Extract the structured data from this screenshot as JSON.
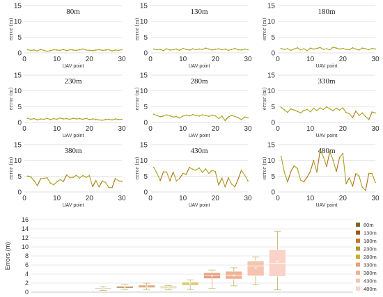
{
  "chart_data": [
    {
      "type": "line",
      "title": "80m",
      "xlabel": "UAV point",
      "ylabel": "error (m)",
      "xlim": [
        0,
        30
      ],
      "ylim": [
        0,
        15
      ],
      "xticks": [
        0,
        10,
        20,
        30
      ],
      "yticks": [
        0,
        5,
        10,
        15
      ],
      "series": [
        {
          "x": [
            1,
            2,
            3,
            4,
            5,
            6,
            7,
            8,
            9,
            10,
            11,
            12,
            13,
            14,
            15,
            16,
            17,
            18,
            19,
            20,
            21,
            22,
            23,
            24,
            25,
            26,
            27,
            28,
            29,
            30
          ],
          "values": [
            1.0,
            0.8,
            0.9,
            0.6,
            1.1,
            0.8,
            0.5,
            0.7,
            1.0,
            0.9,
            0.8,
            1.1,
            0.7,
            1.0,
            0.9,
            0.8,
            1.0,
            1.2,
            0.9,
            0.8,
            0.7,
            0.9,
            1.0,
            0.8,
            0.9,
            1.0,
            0.6,
            0.9,
            0.8,
            1.0
          ]
        }
      ]
    },
    {
      "type": "line",
      "title": "130m",
      "xlabel": "UAV point",
      "ylabel": "error (m)",
      "xlim": [
        0,
        30
      ],
      "ylim": [
        0,
        15
      ],
      "xticks": [
        0,
        10,
        20,
        30
      ],
      "yticks": [
        0,
        5,
        10,
        15
      ],
      "series": [
        {
          "x": [
            1,
            2,
            3,
            4,
            5,
            6,
            7,
            8,
            9,
            10,
            11,
            12,
            13,
            14,
            15,
            16,
            17,
            18,
            19,
            20,
            21,
            22,
            23,
            24,
            25,
            26,
            27,
            28,
            29,
            30
          ],
          "values": [
            1.2,
            1.0,
            1.1,
            0.7,
            1.3,
            0.9,
            1.0,
            1.2,
            0.8,
            1.4,
            1.1,
            0.9,
            1.3,
            1.0,
            1.2,
            1.1,
            1.5,
            1.2,
            0.9,
            1.1,
            1.3,
            1.0,
            1.2,
            0.8,
            1.1,
            1.4,
            1.0,
            0.9,
            1.2,
            1.0
          ]
        }
      ]
    },
    {
      "type": "line",
      "title": "180m",
      "xlabel": "UAV point",
      "ylabel": "error (m)",
      "xlim": [
        0,
        30
      ],
      "ylim": [
        0,
        15
      ],
      "xticks": [
        0,
        10,
        20,
        30
      ],
      "yticks": [
        0,
        5,
        10,
        15
      ],
      "series": [
        {
          "x": [
            1,
            2,
            3,
            4,
            5,
            6,
            7,
            8,
            9,
            10,
            11,
            12,
            13,
            14,
            15,
            16,
            17,
            18,
            19,
            20,
            21,
            22,
            23,
            24,
            25,
            26,
            27,
            28,
            29,
            30
          ],
          "values": [
            1.4,
            1.1,
            1.3,
            0.8,
            1.2,
            1.6,
            1.0,
            1.3,
            0.7,
            1.5,
            1.2,
            1.4,
            1.7,
            1.1,
            1.3,
            1.0,
            1.8,
            1.5,
            1.2,
            1.4,
            1.1,
            1.0,
            1.6,
            1.2,
            0.9,
            1.5,
            1.3,
            1.0,
            1.4,
            1.2
          ]
        }
      ]
    },
    {
      "type": "line",
      "title": "230m",
      "xlabel": "UAV point",
      "ylabel": "error (m)",
      "xlim": [
        0,
        30
      ],
      "ylim": [
        0,
        15
      ],
      "xticks": [
        0,
        10,
        20,
        30
      ],
      "yticks": [
        0,
        5,
        10,
        15
      ],
      "series": [
        {
          "x": [
            1,
            2,
            3,
            4,
            5,
            6,
            7,
            8,
            9,
            10,
            11,
            12,
            13,
            14,
            15,
            16,
            17,
            18,
            19,
            20,
            21,
            22,
            23,
            24,
            25,
            26,
            27,
            28,
            29,
            30
          ],
          "values": [
            1.3,
            1.0,
            1.2,
            0.8,
            1.1,
            1.0,
            1.3,
            0.9,
            1.2,
            1.0,
            1.4,
            1.1,
            1.2,
            1.0,
            1.3,
            1.1,
            1.2,
            1.0,
            1.3,
            0.9,
            1.1,
            1.0,
            0.8,
            0.7,
            0.9,
            1.0,
            0.8,
            1.1,
            0.9,
            1.0
          ]
        }
      ]
    },
    {
      "type": "line",
      "title": "280m",
      "xlabel": "UAV point",
      "ylabel": "error (m)",
      "xlim": [
        0,
        30
      ],
      "ylim": [
        0,
        15
      ],
      "xticks": [
        0,
        10,
        20,
        30
      ],
      "yticks": [
        0,
        5,
        10,
        15
      ],
      "series": [
        {
          "x": [
            1,
            2,
            3,
            4,
            5,
            6,
            7,
            8,
            9,
            10,
            11,
            12,
            13,
            14,
            15,
            16,
            17,
            18,
            19,
            20,
            21,
            22,
            23,
            24,
            25,
            26,
            27,
            28,
            29,
            30
          ],
          "values": [
            2.6,
            2.2,
            1.8,
            2.0,
            2.4,
            2.1,
            1.7,
            1.9,
            1.4,
            2.0,
            2.3,
            2.1,
            2.5,
            2.2,
            2.0,
            2.4,
            2.2,
            1.9,
            2.3,
            2.1,
            1.2,
            2.0,
            0.6,
            1.8,
            2.2,
            1.9,
            1.5,
            0.9,
            1.7,
            1.6
          ]
        }
      ]
    },
    {
      "type": "line",
      "title": "330m",
      "xlabel": "UAV point",
      "ylabel": "error (m)",
      "xlim": [
        0,
        30
      ],
      "ylim": [
        0,
        15
      ],
      "xticks": [
        0,
        10,
        20,
        30
      ],
      "yticks": [
        0,
        5,
        10,
        15
      ],
      "series": [
        {
          "x": [
            1,
            2,
            3,
            4,
            5,
            6,
            7,
            8,
            9,
            10,
            11,
            12,
            13,
            14,
            15,
            16,
            17,
            18,
            19,
            20,
            21,
            22,
            23,
            24,
            25,
            26,
            27,
            28,
            29,
            30
          ],
          "values": [
            4.8,
            4.0,
            3.2,
            4.3,
            3.9,
            3.5,
            3.0,
            3.8,
            4.1,
            3.4,
            4.5,
            3.8,
            4.6,
            4.1,
            4.9,
            4.3,
            3.7,
            4.5,
            3.9,
            4.6,
            3.1,
            2.8,
            1.5,
            3.6,
            2.2,
            3.0,
            1.9,
            0.9,
            3.3,
            3.0
          ]
        }
      ]
    },
    {
      "type": "line",
      "title": "380m",
      "xlabel": "UAV point",
      "ylabel": "error (m)",
      "xlim": [
        0,
        30
      ],
      "ylim": [
        0,
        15
      ],
      "xticks": [
        0,
        10,
        20,
        30
      ],
      "yticks": [
        0,
        5,
        10,
        15
      ],
      "series": [
        {
          "x": [
            1,
            2,
            3,
            4,
            5,
            6,
            7,
            8,
            9,
            10,
            11,
            12,
            13,
            14,
            15,
            16,
            17,
            18,
            19,
            20,
            21,
            22,
            23,
            24,
            25,
            26,
            27,
            28,
            29,
            30
          ],
          "values": [
            5.0,
            4.8,
            3.5,
            2.0,
            4.2,
            4.3,
            4.5,
            2.8,
            2.3,
            3.2,
            3.9,
            3.3,
            5.4,
            4.5,
            4.6,
            5.3,
            4.4,
            5.2,
            4.6,
            5.2,
            1.7,
            3.6,
            1.6,
            3.5,
            3.0,
            1.4,
            1.4,
            4.3,
            3.5,
            3.4
          ]
        }
      ]
    },
    {
      "type": "line",
      "title": "430m",
      "xlabel": "UAV point",
      "ylabel": "error (m)",
      "xlim": [
        0,
        30
      ],
      "ylim": [
        0,
        15
      ],
      "xticks": [
        0,
        10,
        20,
        30
      ],
      "yticks": [
        0,
        5,
        10,
        15
      ],
      "series": [
        {
          "x": [
            1,
            2,
            3,
            4,
            5,
            6,
            7,
            8,
            9,
            10,
            11,
            12,
            13,
            14,
            15,
            16,
            17,
            18,
            19,
            20,
            21,
            22,
            23,
            24,
            25,
            26,
            27,
            28,
            29,
            30
          ],
          "values": [
            7.8,
            6.0,
            3.6,
            6.4,
            6.3,
            3.5,
            6.3,
            3.5,
            4.3,
            5.9,
            5.6,
            7.8,
            7.2,
            6.9,
            7.6,
            6.2,
            7.3,
            5.9,
            6.9,
            6.4,
            2.2,
            4.4,
            1.6,
            4.5,
            2.5,
            1.6,
            4.1,
            6.9,
            5.4,
            3.5
          ]
        }
      ]
    },
    {
      "type": "line",
      "title": "480m",
      "xlabel": "UAV point",
      "ylabel": "error (m)",
      "xlim": [
        0,
        30
      ],
      "ylim": [
        0,
        15
      ],
      "xticks": [
        0,
        10,
        20,
        30
      ],
      "yticks": [
        0,
        5,
        10,
        15
      ],
      "series": [
        {
          "x": [
            1,
            2,
            3,
            4,
            5,
            6,
            7,
            8,
            9,
            10,
            11,
            12,
            13,
            14,
            15,
            16,
            17,
            18,
            19,
            20,
            21,
            22,
            23,
            24,
            25,
            26,
            27,
            28,
            29,
            30
          ],
          "values": [
            11.3,
            6.3,
            3.2,
            6.5,
            8.3,
            7.5,
            3.8,
            3.2,
            4.7,
            6.5,
            10.0,
            6.3,
            13.2,
            11.2,
            8.1,
            12.8,
            10.1,
            6.5,
            11.0,
            12.2,
            2.6,
            4.5,
            1.8,
            5.8,
            5.0,
            1.5,
            0.5,
            5.9,
            5.8,
            3.0
          ]
        }
      ]
    },
    {
      "type": "box",
      "title": "",
      "xlabel": "",
      "ylabel": "Errors (m)",
      "ylim": [
        0,
        16
      ],
      "yticks": [
        0,
        2,
        4,
        6,
        8,
        10,
        12,
        14,
        16
      ],
      "categories": [
        "80m",
        "130m",
        "180m",
        "230m",
        "280m",
        "330m",
        "380m",
        "430m",
        "480m"
      ],
      "boxes": [
        {
          "name": "80m",
          "min": 0.4,
          "q1": 0.7,
          "median": 0.8,
          "mean": 0.8,
          "q3": 0.95,
          "max": 1.2,
          "color": "#7a6a1e"
        },
        {
          "name": "130m",
          "min": 0.6,
          "q1": 0.9,
          "median": 1.1,
          "mean": 1.1,
          "q3": 1.3,
          "max": 1.7,
          "color": "#9c5a1a"
        },
        {
          "name": "180m",
          "min": 0.6,
          "q1": 1.0,
          "median": 1.2,
          "mean": 1.2,
          "q3": 1.5,
          "max": 2.0,
          "color": "#c8742c"
        },
        {
          "name": "230m",
          "min": 0.5,
          "q1": 0.85,
          "median": 1.0,
          "mean": 1.0,
          "q3": 1.2,
          "max": 1.5,
          "color": "#b1961e"
        },
        {
          "name": "280m",
          "min": 0.6,
          "q1": 1.6,
          "median": 2.0,
          "mean": 1.9,
          "q3": 2.2,
          "max": 2.7,
          "color": "#c9b02c"
        },
        {
          "name": "330m",
          "min": 0.8,
          "q1": 3.0,
          "median": 3.7,
          "mean": 3.6,
          "q3": 4.3,
          "max": 4.9,
          "color": "#e6a183"
        },
        {
          "name": "380m",
          "min": 1.4,
          "q1": 2.9,
          "median": 3.7,
          "mean": 3.7,
          "q3": 4.6,
          "max": 5.4,
          "color": "#f0b294"
        },
        {
          "name": "430m",
          "min": 1.6,
          "q1": 3.6,
          "median": 5.8,
          "mean": 5.3,
          "q3": 6.9,
          "max": 7.8,
          "color": "#f5c4b1"
        },
        {
          "name": "480m",
          "min": 0.5,
          "q1": 3.5,
          "median": 6.4,
          "mean": 6.8,
          "q3": 9.4,
          "max": 13.5,
          "color": "#fad3c8"
        }
      ],
      "legend": [
        "80m",
        "130m",
        "180m",
        "230m",
        "280m",
        "330m",
        "380m",
        "430m",
        "480m"
      ],
      "legend_position": "right"
    }
  ],
  "style": {
    "line_color": "#a9a31e",
    "line_accent": "#c0452c",
    "grid": "#d9d9d9"
  }
}
